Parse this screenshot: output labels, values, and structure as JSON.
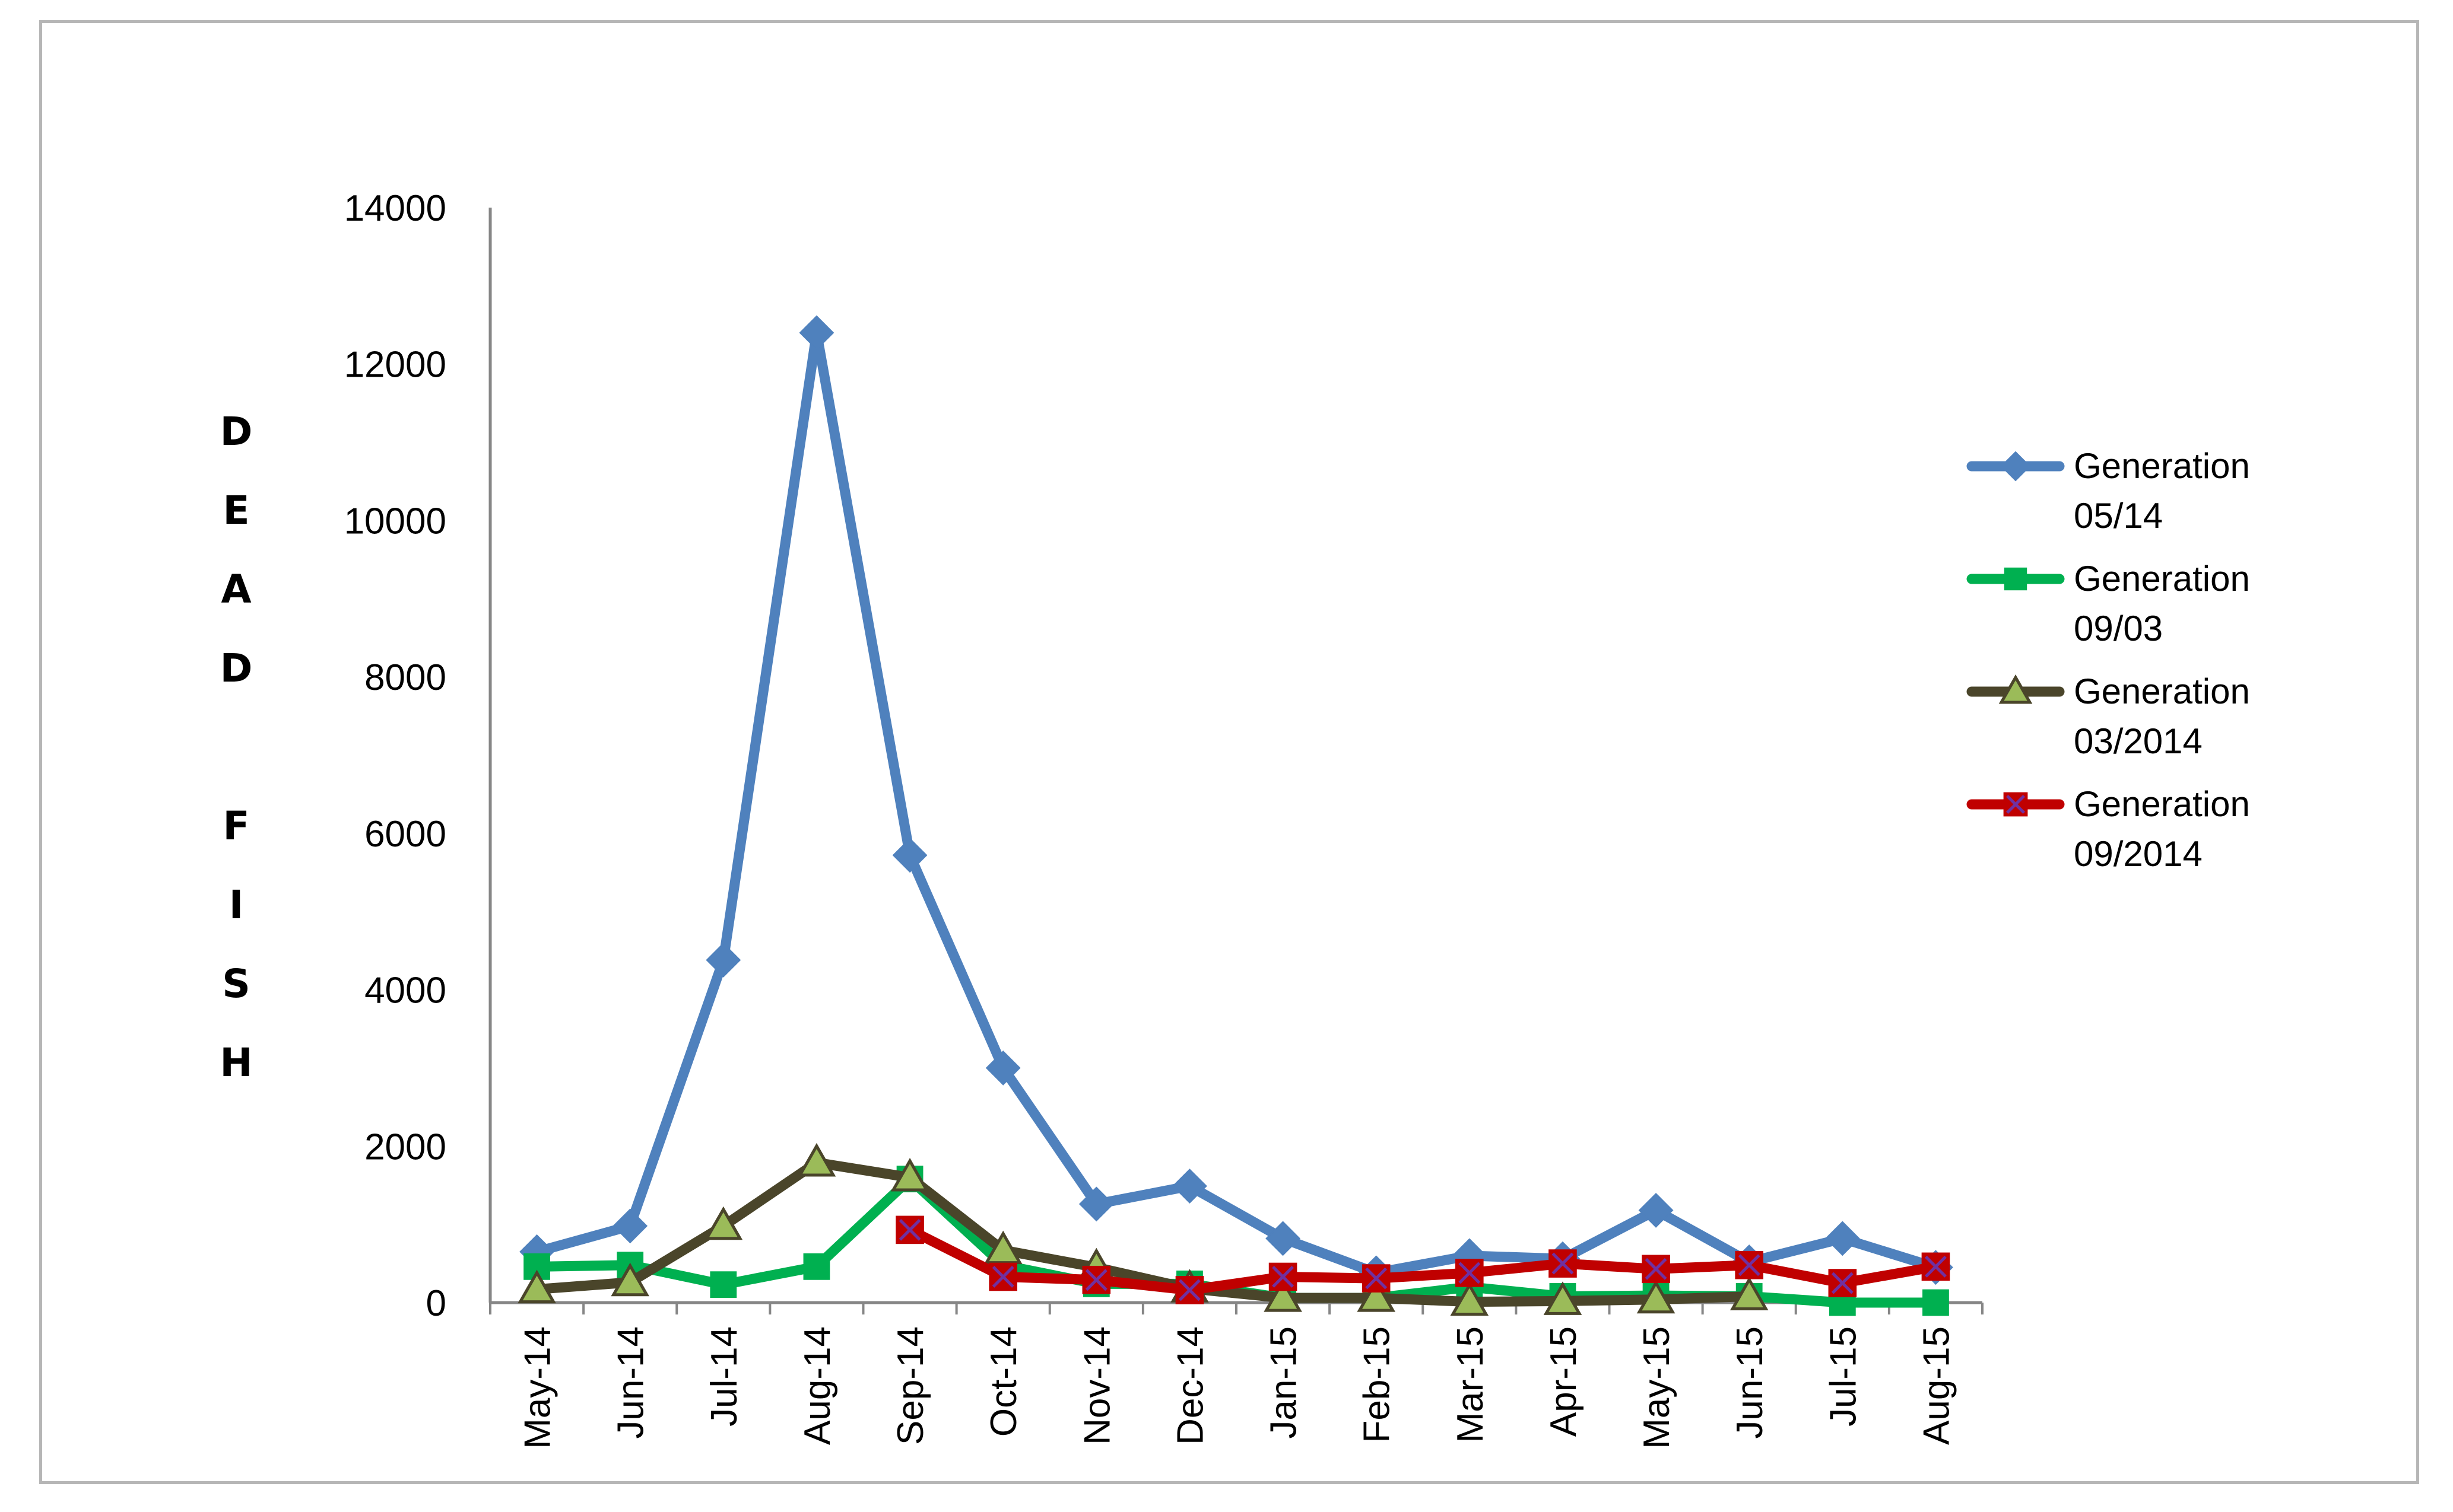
{
  "chart_data": {
    "type": "line",
    "title": "",
    "xlabel": "",
    "ylabel": "DEAD FISH",
    "ylabel_letters": [
      "D",
      "E",
      "A",
      "D",
      "",
      "F",
      "I",
      "S",
      "H"
    ],
    "ylim": [
      0,
      14000
    ],
    "yticks": [
      0,
      2000,
      4000,
      6000,
      8000,
      10000,
      12000,
      14000
    ],
    "grid": false,
    "legend_position": "right",
    "categories": [
      "May-14",
      "Jun-14",
      "Jul-14",
      "Aug-14",
      "Sep-14",
      "Oct-14",
      "Nov-14",
      "Dec-14",
      "Jan-15",
      "Feb-15",
      "Mar-15",
      "Apr-15",
      "May-15",
      "Jun-15",
      "Jul-15",
      "Aug-15"
    ],
    "series": [
      {
        "name": "Generation 05/14",
        "legend_lines": [
          "Generation",
          "05/14"
        ],
        "color": "#4f81bd",
        "marker": "diamond",
        "values": [
          650,
          980,
          4380,
          12400,
          5720,
          3000,
          1260,
          1490,
          820,
          380,
          600,
          560,
          1180,
          520,
          820,
          450
        ]
      },
      {
        "name": "Generation 09/03",
        "legend_lines": [
          "Generation",
          "09/03"
        ],
        "color": "#00b050",
        "marker": "square",
        "values": [
          460,
          480,
          230,
          460,
          1580,
          480,
          240,
          240,
          60,
          60,
          200,
          80,
          90,
          80,
          0,
          0
        ]
      },
      {
        "name": "Generation 03/2014",
        "legend_lines": [
          "Generation",
          "03/2014"
        ],
        "color": "#4a452a",
        "marker": "triangle",
        "marker_fill": "#9bbb59",
        "values": [
          170,
          260,
          980,
          1790,
          1600,
          670,
          450,
          180,
          60,
          60,
          10,
          20,
          40,
          80,
          null,
          null
        ]
      },
      {
        "name": "Generation 09/2014",
        "legend_lines": [
          "Generation",
          "09/2014"
        ],
        "color": "#c00000",
        "marker": "x-square",
        "values": [
          null,
          null,
          null,
          null,
          930,
          330,
          290,
          160,
          330,
          310,
          380,
          500,
          430,
          480,
          250,
          460
        ]
      }
    ]
  }
}
